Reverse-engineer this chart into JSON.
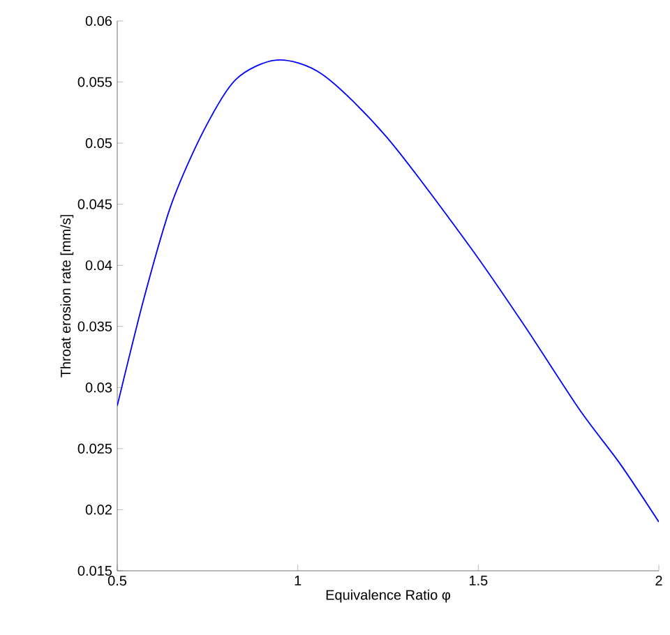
{
  "chart_data": {
    "type": "line",
    "xlabel": "Equivalence Ratio φ",
    "ylabel": "Throat erosion rate [mm/s]",
    "xlim": [
      0.5,
      2
    ],
    "ylim": [
      0.015,
      0.06
    ],
    "xticks": [
      0.5,
      1,
      1.5,
      2
    ],
    "yticks": [
      0.015,
      0.02,
      0.025,
      0.03,
      0.035,
      0.04,
      0.045,
      0.05,
      0.055,
      0.06
    ],
    "grid": false,
    "marker": "none",
    "line_style": "solid",
    "series": [
      {
        "color": "#0000ff",
        "x": [
          0.5,
          0.574,
          0.65,
          0.739,
          0.828,
          0.942,
          1.069,
          1.246,
          1.475,
          1.627,
          1.78,
          1.894,
          2.0
        ],
        "values": [
          0.0285,
          0.0373,
          0.045,
          0.051,
          0.0552,
          0.0568,
          0.0556,
          0.0505,
          0.0416,
          0.0351,
          0.0282,
          0.0237,
          0.019
        ]
      }
    ]
  }
}
